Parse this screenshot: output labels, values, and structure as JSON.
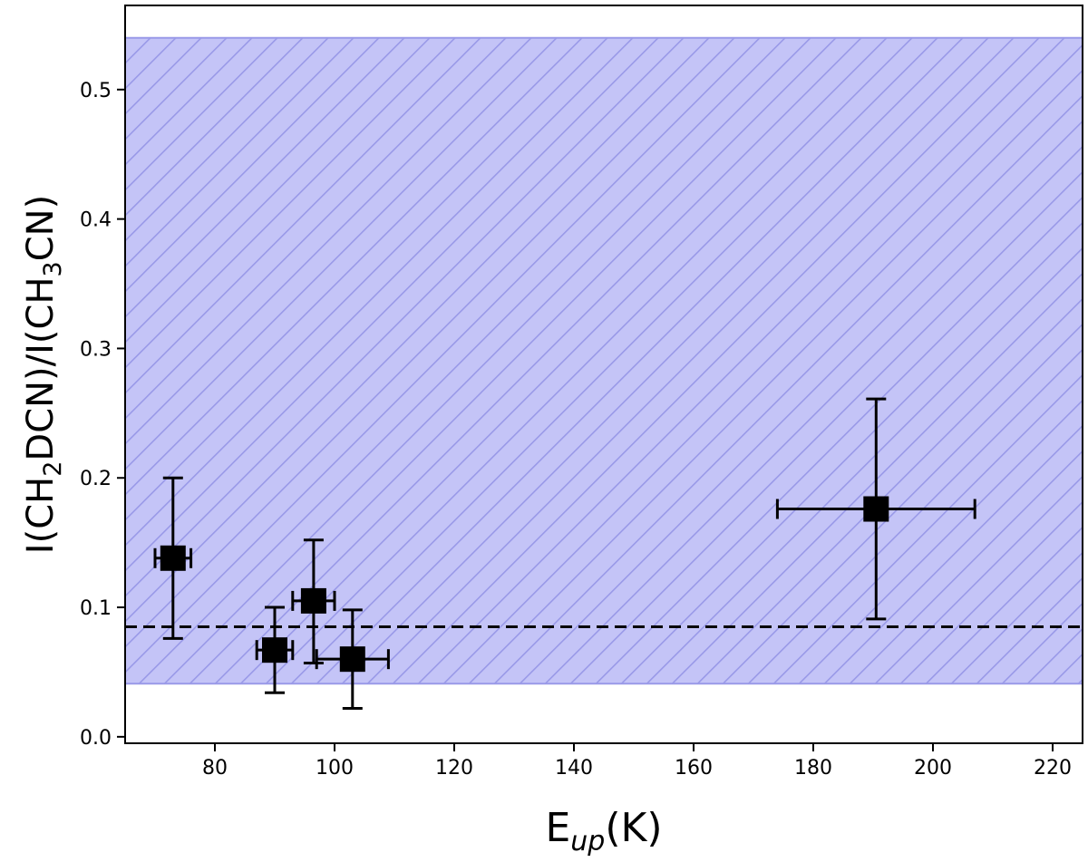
{
  "chart_data": {
    "type": "scatter",
    "xlabel": {
      "main": "E",
      "sub": "up",
      "tail": "(K)"
    },
    "ylabel": {
      "p1": "I(CH",
      "s1": "2",
      "p2": "DCN)/I(CH",
      "s2": "3",
      "p3": "CN)"
    },
    "xlim": [
      65,
      225
    ],
    "ylim": [
      -0.005,
      0.565
    ],
    "x_ticks": [
      80,
      100,
      120,
      140,
      160,
      180,
      200,
      220
    ],
    "x_tick_labels": [
      "80",
      "100",
      "120",
      "140",
      "160",
      "180",
      "200",
      "220"
    ],
    "y_ticks": [
      0.0,
      0.1,
      0.2,
      0.3,
      0.4,
      0.5
    ],
    "y_tick_labels": [
      "0.0",
      "0.1",
      "0.2",
      "0.3",
      "0.4",
      "0.5"
    ],
    "grid": false,
    "band": {
      "y_low": 0.041,
      "y_high": 0.54,
      "color": "#c4c4f7",
      "hatch_color": "#9a9ae8"
    },
    "reference_line": {
      "y": 0.085,
      "style": "dashed",
      "color": "#000000"
    },
    "points": [
      {
        "x": 73,
        "y": 0.138,
        "x_low": 70,
        "x_high": 76,
        "y_low": 0.076,
        "y_high": 0.2
      },
      {
        "x": 90,
        "y": 0.067,
        "x_low": 87,
        "x_high": 93,
        "y_low": 0.034,
        "y_high": 0.1
      },
      {
        "x": 96.5,
        "y": 0.105,
        "x_low": 93,
        "x_high": 100,
        "y_low": 0.057,
        "y_high": 0.152
      },
      {
        "x": 103,
        "y": 0.06,
        "x_low": 97,
        "x_high": 109,
        "y_low": 0.022,
        "y_high": 0.098
      },
      {
        "x": 190.5,
        "y": 0.176,
        "x_low": 174,
        "x_high": 207,
        "y_low": 0.091,
        "y_high": 0.261
      }
    ],
    "marker": {
      "shape": "square",
      "color": "#000000"
    }
  }
}
